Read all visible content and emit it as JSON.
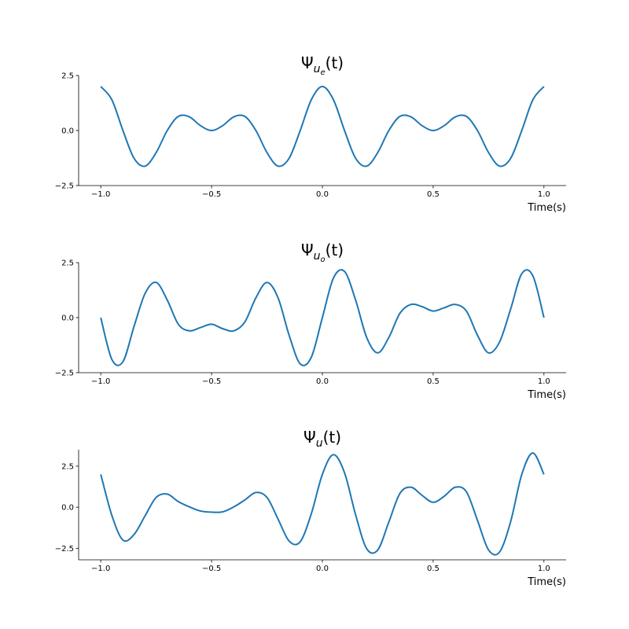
{
  "chart_data": [
    {
      "type": "line",
      "title": {
        "base": "Ψ",
        "sub": "u",
        "subsub": "e",
        "tail": "(t)"
      },
      "xlabel": "Time(s)",
      "x": [
        -1,
        -0.95,
        -0.9,
        -0.85,
        -0.8,
        -0.75,
        -0.7,
        -0.65,
        -0.6,
        -0.55,
        -0.5,
        -0.45,
        -0.4,
        -0.35,
        -0.3,
        -0.25,
        -0.2,
        -0.15,
        -0.1,
        -0.05,
        0,
        0.05,
        0.1,
        0.15,
        0.2,
        0.25,
        0.3,
        0.35,
        0.4,
        0.45,
        0.5,
        0.55,
        0.6,
        0.65,
        0.7,
        0.75,
        0.8,
        0.85,
        0.9,
        0.95,
        1
      ],
      "series": [
        {
          "color": "#1f77b4",
          "values": [
            2,
            1.397,
            0,
            -1.26,
            -1.618,
            -1,
            0,
            0.642,
            0.618,
            0.221,
            0,
            0.221,
            0.618,
            0.642,
            0,
            -1,
            -1.618,
            -1.26,
            0,
            1.397,
            2,
            1.397,
            0,
            -1.26,
            -1.618,
            -1,
            0,
            0.642,
            0.618,
            0.221,
            0,
            0.221,
            0.618,
            0.642,
            0,
            -1,
            -1.618,
            -1.26,
            0,
            1.397,
            2
          ]
        }
      ],
      "xlim": [
        -1.1,
        1.1
      ],
      "ylim": [
        -2.5,
        2.5
      ],
      "xticks": [
        {
          "value": -1,
          "label": "−1.0"
        },
        {
          "value": -0.5,
          "label": "−0.5"
        },
        {
          "value": 0,
          "label": "0.0"
        },
        {
          "value": 0.5,
          "label": "0.5"
        },
        {
          "value": 1,
          "label": "1.0"
        }
      ],
      "yticks": [
        {
          "value": -2.5,
          "label": "−2.5"
        },
        {
          "value": 0,
          "label": "0.0"
        },
        {
          "value": 2.5,
          "label": "2.5"
        }
      ]
    },
    {
      "type": "line",
      "title": {
        "base": "Ψ",
        "sub": "u",
        "subsub": "o",
        "tail": "(t)"
      },
      "xlabel": "Time(s)",
      "x": [
        -1,
        -0.95,
        -0.9,
        -0.85,
        -0.8,
        -0.75,
        -0.7,
        -0.65,
        -0.6,
        -0.55,
        -0.5,
        -0.45,
        -0.4,
        -0.35,
        -0.3,
        -0.25,
        -0.2,
        -0.15,
        -0.1,
        -0.05,
        0,
        0.05,
        0.1,
        0.15,
        0.2,
        0.25,
        0.3,
        0.35,
        0.4,
        0.45,
        0.5,
        0.55,
        0.6,
        0.65,
        0.7,
        0.75,
        0.8,
        0.85,
        0.9,
        0.95,
        1
      ],
      "series": [
        {
          "color": "#1f77b4",
          "values": [
            0,
            -1.9,
            -2,
            -0.4,
            1.1,
            1.6,
            0.8,
            -0.3,
            -0.6,
            -0.45,
            -0.3,
            -0.5,
            -0.6,
            -0.2,
            0.9,
            1.6,
            0.9,
            -0.8,
            -2.1,
            -1.8,
            0,
            1.8,
            2.1,
            0.8,
            -0.9,
            -1.6,
            -0.9,
            0.2,
            0.6,
            0.5,
            0.3,
            0.45,
            0.6,
            0.3,
            -0.8,
            -1.6,
            -1.1,
            0.4,
            2,
            1.9,
            0
          ]
        }
      ],
      "xlim": [
        -1.1,
        1.1
      ],
      "ylim": [
        -2.5,
        2.5
      ],
      "xticks": [
        {
          "value": -1,
          "label": "−1.0"
        },
        {
          "value": -0.5,
          "label": "−0.5"
        },
        {
          "value": 0,
          "label": "0.0"
        },
        {
          "value": 0.5,
          "label": "0.5"
        },
        {
          "value": 1,
          "label": "1.0"
        }
      ],
      "yticks": [
        {
          "value": -2.5,
          "label": "−2.5"
        },
        {
          "value": 0,
          "label": "0.0"
        },
        {
          "value": 2.5,
          "label": "2.5"
        }
      ]
    },
    {
      "type": "line",
      "title": {
        "base": "Ψ",
        "sub": "u",
        "tail": "(t)"
      },
      "xlabel": "Time(s)",
      "x": [
        -1,
        -0.95,
        -0.9,
        -0.85,
        -0.8,
        -0.75,
        -0.7,
        -0.65,
        -0.6,
        -0.55,
        -0.5,
        -0.45,
        -0.4,
        -0.35,
        -0.3,
        -0.25,
        -0.2,
        -0.15,
        -0.1,
        -0.05,
        0,
        0.05,
        0.1,
        0.15,
        0.2,
        0.25,
        0.3,
        0.35,
        0.4,
        0.45,
        0.5,
        0.55,
        0.6,
        0.65,
        0.7,
        0.75,
        0.8,
        0.85,
        0.9,
        0.95,
        1
      ],
      "series": [
        {
          "color": "#1f77b4",
          "values": [
            2,
            -0.5,
            -2,
            -1.66,
            -0.52,
            0.6,
            0.8,
            0.34,
            0.02,
            -0.23,
            -0.3,
            -0.28,
            0.02,
            0.44,
            0.9,
            0.6,
            -0.72,
            -2.06,
            -2.1,
            -0.4,
            2,
            3.2,
            2.1,
            -0.46,
            -2.52,
            -2.6,
            -0.9,
            0.84,
            1.22,
            0.72,
            0.3,
            0.67,
            1.22,
            0.94,
            -0.8,
            -2.6,
            -2.72,
            -0.86,
            2,
            3.3,
            2
          ]
        }
      ],
      "xlim": [
        -1.1,
        1.1
      ],
      "ylim": [
        -3.2,
        3.5
      ],
      "xticks": [
        {
          "value": -1,
          "label": "−1.0"
        },
        {
          "value": -0.5,
          "label": "−0.5"
        },
        {
          "value": 0,
          "label": "0.0"
        },
        {
          "value": 0.5,
          "label": "0.5"
        },
        {
          "value": 1,
          "label": "1.0"
        }
      ],
      "yticks": [
        {
          "value": -2.5,
          "label": "−2.5"
        },
        {
          "value": 0,
          "label": "0.0"
        },
        {
          "value": 2.5,
          "label": "2.5"
        }
      ]
    }
  ]
}
